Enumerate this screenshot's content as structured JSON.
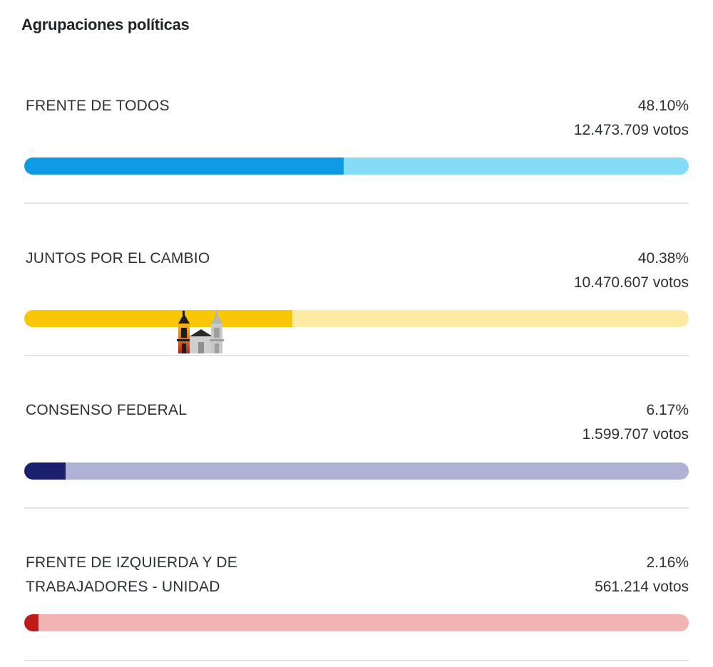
{
  "header": {
    "title": "Agrupaciones políticas"
  },
  "parties": [
    {
      "name": "FRENTE DE TODOS",
      "percent_label": "48.10%",
      "votes_label": "12.473.709 votos",
      "share": 0.481,
      "color_fill": "#0c9be3",
      "color_track": "#84dcf6"
    },
    {
      "name": "JUNTOS POR EL CAMBIO",
      "percent_label": "40.38%",
      "votes_label": "10.470.607 votos",
      "share": 0.4038,
      "color_fill": "#f9c706",
      "color_track": "#fdeaa3"
    },
    {
      "name": "CONSENSO FEDERAL",
      "percent_label": "6.17%",
      "votes_label": "1.599.707 votos",
      "share": 0.0617,
      "color_fill": "#1a206b",
      "color_track": "#aeb3d3"
    },
    {
      "name": "FRENTE DE IZQUIERDA Y DE TRABAJADORES - UNIDAD",
      "percent_label": "2.16%",
      "votes_label": "561.214 votos",
      "share": 0.0216,
      "color_fill": "#c01a1a",
      "color_track": "#f2b3b3"
    }
  ],
  "watermark": {
    "icon": "church-logo-icon"
  }
}
